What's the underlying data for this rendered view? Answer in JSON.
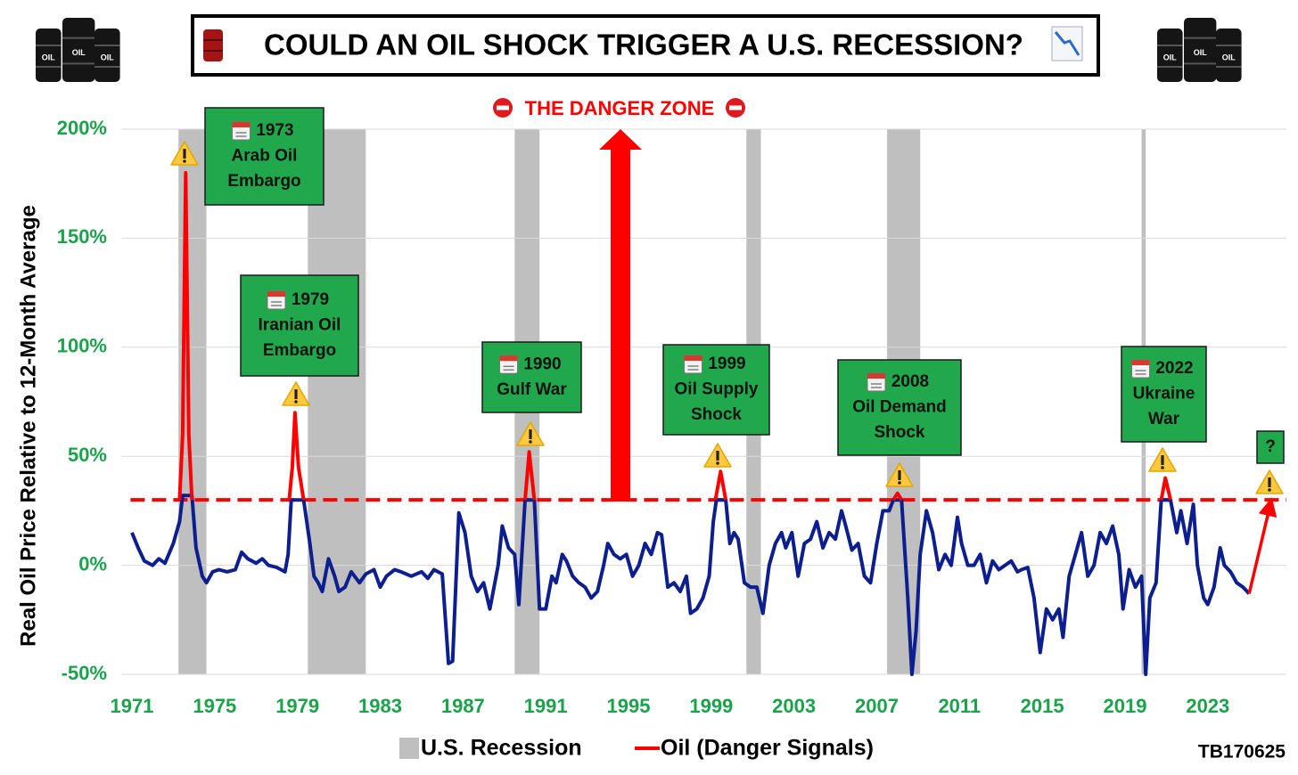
{
  "chart_data": {
    "type": "line",
    "title": "COULD AN OIL SHOCK TRIGGER A U.S. RECESSION?",
    "danger_zone_label": "THE DANGER ZONE",
    "y_label": "Real Oil Price Relative to 12-Month Average",
    "barrel_label": "OIL",
    "source": "TB170625",
    "xlim": [
      1970.5,
      2026.8
    ],
    "xticks": [
      1971,
      1975,
      1979,
      1983,
      1987,
      1991,
      1995,
      1999,
      2003,
      2007,
      2011,
      2015,
      2019,
      2023
    ],
    "ylim": [
      -50,
      200
    ],
    "yticks": [
      {
        "value": -50,
        "label": "-50%"
      },
      {
        "value": 0,
        "label": "0%"
      },
      {
        "value": 50,
        "label": "50%"
      },
      {
        "value": 100,
        "label": "100%"
      },
      {
        "value": 150,
        "label": "150%"
      },
      {
        "value": 200,
        "label": "200%"
      }
    ],
    "grid": true,
    "threshold": 30,
    "threshold_color": "#ff0000",
    "recessions": {
      "name": "U.S. Recession",
      "color": "#bfbfbf",
      "spans": [
        [
          1973.25,
          1974.6
        ],
        [
          1979.5,
          1982.3
        ],
        [
          1989.5,
          1990.7
        ],
        [
          2000.7,
          2001.4
        ],
        [
          2007.5,
          2009.1
        ],
        [
          2019.8,
          2020.0
        ]
      ]
    },
    "series": [
      {
        "color": "#0d1f8f",
        "x": [
          1971.0,
          1971.3,
          1971.6,
          1972.0,
          1972.3,
          1972.6,
          1973.0,
          1973.3,
          1973.45,
          1973.9,
          1974.1,
          1974.4,
          1974.6,
          1974.9,
          1975.2,
          1975.6,
          1976.0,
          1976.3,
          1976.6,
          1977.0,
          1977.3,
          1977.6,
          1978.0,
          1978.4,
          1978.55,
          1978.7,
          1979.3,
          1979.6,
          1979.8,
          1980.0,
          1980.2,
          1980.5,
          1980.8,
          1981.0,
          1981.3,
          1981.6,
          1982.0,
          1982.3,
          1982.7,
          1983.0,
          1983.3,
          1983.7,
          1984.0,
          1984.5,
          1985.0,
          1985.3,
          1985.6,
          1986.0,
          1986.3,
          1986.5,
          1986.8,
          1987.1,
          1987.4,
          1987.7,
          1988.0,
          1988.3,
          1988.7,
          1988.9,
          1989.2,
          1989.5,
          1989.7,
          1990.0,
          1990.45,
          1990.7,
          1991.0,
          1991.3,
          1991.5,
          1991.8,
          1992.0,
          1992.3,
          1992.6,
          1992.9,
          1993.2,
          1993.5,
          1993.8,
          1994.0,
          1994.3,
          1994.6,
          1994.9,
          1995.2,
          1995.5,
          1995.8,
          1996.1,
          1996.4,
          1996.6,
          1996.9,
          1997.2,
          1997.5,
          1997.8,
          1998.0,
          1998.3,
          1998.6,
          1998.9,
          1999.1,
          1999.25,
          1999.7,
          1999.9,
          2000.1,
          2000.3,
          2000.6,
          2000.9,
          2001.2,
          2001.5,
          2001.8,
          2002.1,
          2002.4,
          2002.6,
          2002.9,
          2003.2,
          2003.5,
          2003.8,
          2004.1,
          2004.4,
          2004.7,
          2005.0,
          2005.3,
          2005.5,
          2005.8,
          2006.1,
          2006.4,
          2006.7,
          2007.0,
          2007.3,
          2007.6,
          2007.8,
          2008.2,
          2008.5,
          2008.7,
          2008.9,
          2009.1,
          2009.4,
          2009.7,
          2010.0,
          2010.3,
          2010.6,
          2010.9,
          2011.1,
          2011.4,
          2011.7,
          2012.0,
          2012.3,
          2012.6,
          2012.9,
          2013.2,
          2013.5,
          2013.8,
          2014.0,
          2014.3,
          2014.6,
          2014.9,
          2015.2,
          2015.5,
          2015.8,
          2016.0,
          2016.3,
          2016.6,
          2016.9,
          2017.2,
          2017.5,
          2017.8,
          2018.1,
          2018.4,
          2018.7,
          2018.9,
          2019.2,
          2019.5,
          2019.8,
          2020.0,
          2020.2,
          2020.5,
          2020.75,
          2021.2,
          2021.5,
          2021.7,
          2022.0,
          2022.3,
          2022.5,
          2022.8,
          2023.0,
          2023.3,
          2023.6,
          2023.8,
          2024.1,
          2024.4,
          2024.7,
          2025.0
        ],
        "values": [
          15,
          8,
          2,
          0,
          3,
          1,
          10,
          20,
          32,
          32,
          8,
          -5,
          -8,
          -3,
          -2,
          -3,
          -2,
          6,
          3,
          1,
          3,
          0,
          -1,
          -3,
          5,
          30,
          30,
          10,
          -5,
          -8,
          -12,
          3,
          -5,
          -12,
          -10,
          -3,
          -8,
          -4,
          -2,
          -10,
          -5,
          -2,
          -3,
          -5,
          -3,
          -6,
          -2,
          -4,
          -45,
          -44,
          24,
          15,
          -5,
          -12,
          -8,
          -20,
          0,
          18,
          8,
          5,
          -18,
          30,
          30,
          -20,
          -20,
          -5,
          -8,
          5,
          2,
          -5,
          -8,
          -10,
          -15,
          -12,
          0,
          10,
          5,
          3,
          5,
          -5,
          0,
          10,
          5,
          15,
          14,
          -10,
          -8,
          -12,
          -5,
          -22,
          -20,
          -15,
          -5,
          20,
          30,
          30,
          10,
          15,
          12,
          -8,
          -10,
          -10,
          -22,
          0,
          10,
          15,
          8,
          15,
          -5,
          10,
          12,
          20,
          8,
          15,
          12,
          25,
          18,
          7,
          10,
          -5,
          -8,
          10,
          25,
          25,
          30,
          30,
          -15,
          -50,
          -30,
          5,
          25,
          15,
          -2,
          5,
          0,
          22,
          10,
          0,
          0,
          5,
          -8,
          2,
          -2,
          0,
          2,
          -3,
          -2,
          -1,
          -15,
          -40,
          -20,
          -25,
          -20,
          -33,
          -5,
          5,
          15,
          -5,
          0,
          15,
          10,
          18,
          5,
          -20,
          -2,
          -10,
          -5,
          -50,
          -15,
          -8,
          30,
          30,
          15,
          25,
          10,
          28,
          0,
          -15,
          -18,
          -10,
          8,
          0,
          -3,
          -8,
          -10,
          -13
        ]
      },
      {
        "name": "Oil (Danger Signals)",
        "color": "#ff0000",
        "x": [
          1973.3,
          1973.45,
          1973.6,
          1973.75,
          1973.9,
          1976,
          1978.6,
          1978.75,
          1978.88,
          1979.05,
          1979.3,
          1985,
          1990.0,
          1990.2,
          1990.45,
          1995,
          1999.2,
          1999.45,
          1999.7,
          2004,
          2007.8,
          2008.0,
          2008.2,
          2015,
          2020.75,
          2020.95,
          2021.2
        ],
        "values": [
          30,
          60,
          180,
          60,
          30,
          null,
          30,
          45,
          70,
          45,
          30,
          null,
          30,
          52,
          30,
          null,
          30,
          43,
          30,
          null,
          30,
          33,
          30,
          null,
          30,
          40,
          30
        ]
      }
    ],
    "projection": {
      "color": "#ff0000",
      "x": [
        2025.0,
        2026.0
      ],
      "values": [
        -13,
        27
      ]
    },
    "annotations": [
      {
        "lines": [
          "1973",
          "Arab Oil",
          "Embargo"
        ]
      },
      {
        "lines": [
          "1979",
          "Iranian Oil",
          "Embargo"
        ]
      },
      {
        "lines": [
          "1990",
          "Gulf War"
        ]
      },
      {
        "lines": [
          "1999",
          "Oil Supply",
          "Shock"
        ]
      },
      {
        "lines": [
          "2008",
          "Oil Demand",
          "Shock"
        ]
      },
      {
        "lines": [
          "2022",
          "Ukraine",
          "War"
        ]
      },
      {
        "lines": [
          "?"
        ]
      }
    ]
  }
}
